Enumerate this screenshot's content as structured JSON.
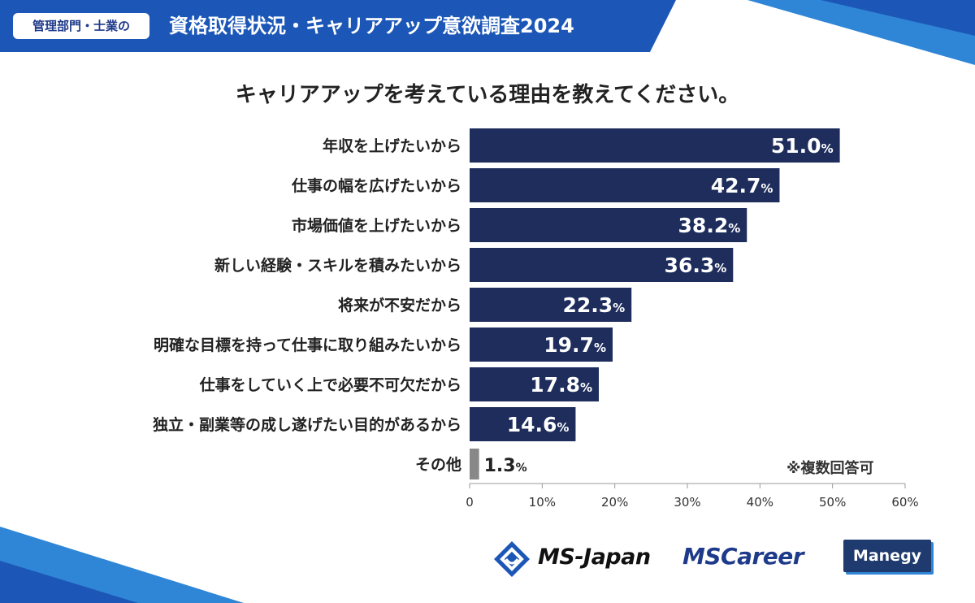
{
  "header": {
    "tag": "管理部門・士業の",
    "title": "資格取得状況・キャリアアップ意欲調査2024"
  },
  "question": "キャリアアップを考えている理由を教えてください。",
  "footnote": "※複数回答可",
  "colors": {
    "bar": "#1e2d5c",
    "bar_other": "#888888",
    "header_blue": "#1c57b7",
    "accent_light": "#2f86d6"
  },
  "chart_data": {
    "type": "bar",
    "orientation": "horizontal",
    "categories": [
      "年収を上げたいから",
      "仕事の幅を広げたいから",
      "市場価値を上げたいから",
      "新しい経験・スキルを積みたいから",
      "将来が不安だから",
      "明確な目標を持って仕事に取り組みたいから",
      "仕事をしていく上で必要不可欠だから",
      "独立・副業等の成し遂げたい目的があるから",
      "その他"
    ],
    "values": [
      51.0,
      42.7,
      38.2,
      36.3,
      22.3,
      19.7,
      17.8,
      14.6,
      1.3
    ],
    "value_labels": [
      "51.0",
      "42.7",
      "38.2",
      "36.3",
      "22.3",
      "19.7",
      "17.8",
      "14.6",
      "1.3"
    ],
    "unit": "%",
    "xlim": [
      0,
      60
    ],
    "xticks": [
      "0",
      "10%",
      "20%",
      "30%",
      "40%",
      "50%",
      "60%"
    ],
    "title": "キャリアアップを考えている理由を教えてください。",
    "legend": "none"
  },
  "logos": {
    "ms_japan": "MS-Japan",
    "ms_career": "MSCareer",
    "manegy": "Manegy"
  }
}
